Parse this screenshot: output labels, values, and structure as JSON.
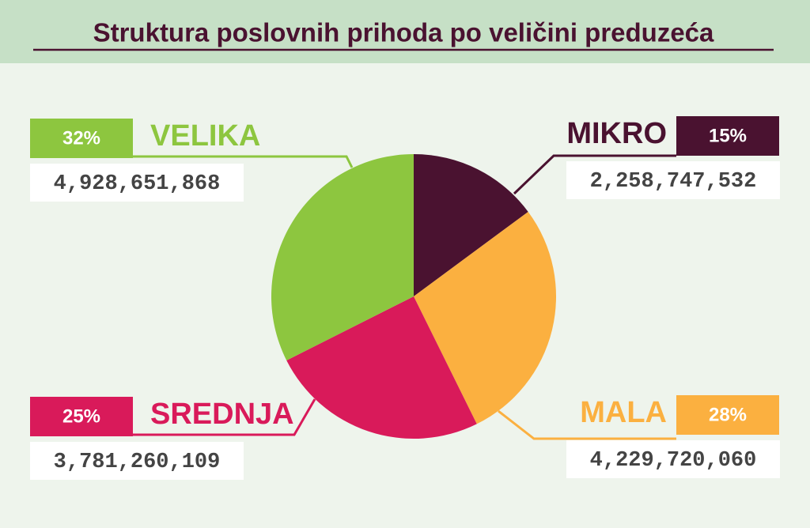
{
  "chart_data": {
    "type": "pie",
    "title": "Struktura poslovnih prihoda po veličini preduzeća",
    "categories": [
      "MIKRO",
      "MALA",
      "SREDNJA",
      "VELIKA"
    ],
    "values": [
      2258747532,
      4229720060,
      3781260109,
      4928651868
    ],
    "value_labels": [
      "2,258,747,532",
      "4,229,720,060",
      "3,781,260,109",
      "4,928,651,868"
    ],
    "percentages": [
      15,
      28,
      25,
      32
    ],
    "percentage_labels": [
      "15%",
      "28%",
      "25%",
      "32%"
    ],
    "colors": [
      "#4a1230",
      "#fbb040",
      "#d91a5a",
      "#8dc63f"
    ]
  }
}
